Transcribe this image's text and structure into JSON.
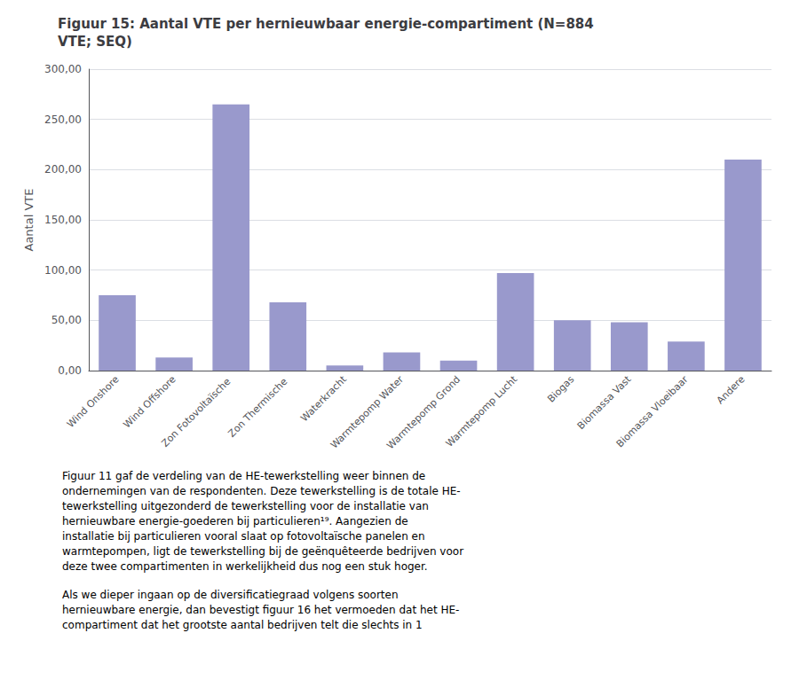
{
  "chart_data": {
    "type": "bar",
    "title": "Figuur 15: Aantal VTE per hernieuwbaar energie-compartiment (N=884\nVTE; SEQ)",
    "ylabel": "Aantal VTE",
    "categories": [
      "Wind Onshore",
      "Wind Offshore",
      "Zon Fotovoltaïsche ​",
      "Zon Thermische ​",
      "Waterkracht",
      "Warmtepomp Water",
      "Warmtepomp Grond",
      "Warmtepomp Lucht",
      "Biogas",
      "Biomassa Vast",
      "Biomassa Vloeibaar",
      "Andere"
    ],
    "values": [
      75,
      13,
      265,
      68,
      5,
      18,
      10,
      97,
      50,
      48,
      29,
      210
    ],
    "color": "#9999cc",
    "ylim": [
      0,
      300
    ],
    "yticks": [
      {
        "value": 0,
        "label": "0,00"
      },
      {
        "value": 50,
        "label": "50,00"
      },
      {
        "value": 100,
        "label": "100,00"
      },
      {
        "value": 150,
        "label": "150,00"
      },
      {
        "value": 200,
        "label": "200,00"
      },
      {
        "value": 250,
        "label": "250,00"
      },
      {
        "value": 300,
        "label": "300,00"
      }
    ],
    "grid": true,
    "annotations": [
      "Figuur 11 gaf de verdeling van de HE-tewerkstelling weer binnen de\nondernemingen van de respondenten. Deze tewerkstelling is de totale HE-\ntewerkstelling uitgezonderd de tewerkstelling voor de installatie van\nhernieuwbare energie-goederen bij particulieren¹⁹. Aangezien de\ninstallatie bij particulieren vooral slaat op fotovoltaïsche panelen en\nwarmtepompen, ligt de tewerkstelling bij de geënquêteerde bedrijven voor\ndeze twee compartimenten in werkelijkheid dus nog een stuk hoger.",
      "Als we dieper ingaan op de diversificatiegraad volgens soorten\nhernieuwbare energie, dan bevestigt figuur 16 het vermoeden dat het HE-\ncompartiment dat het grootste aantal bedrijven telt die slechts in 1"
    ]
  }
}
